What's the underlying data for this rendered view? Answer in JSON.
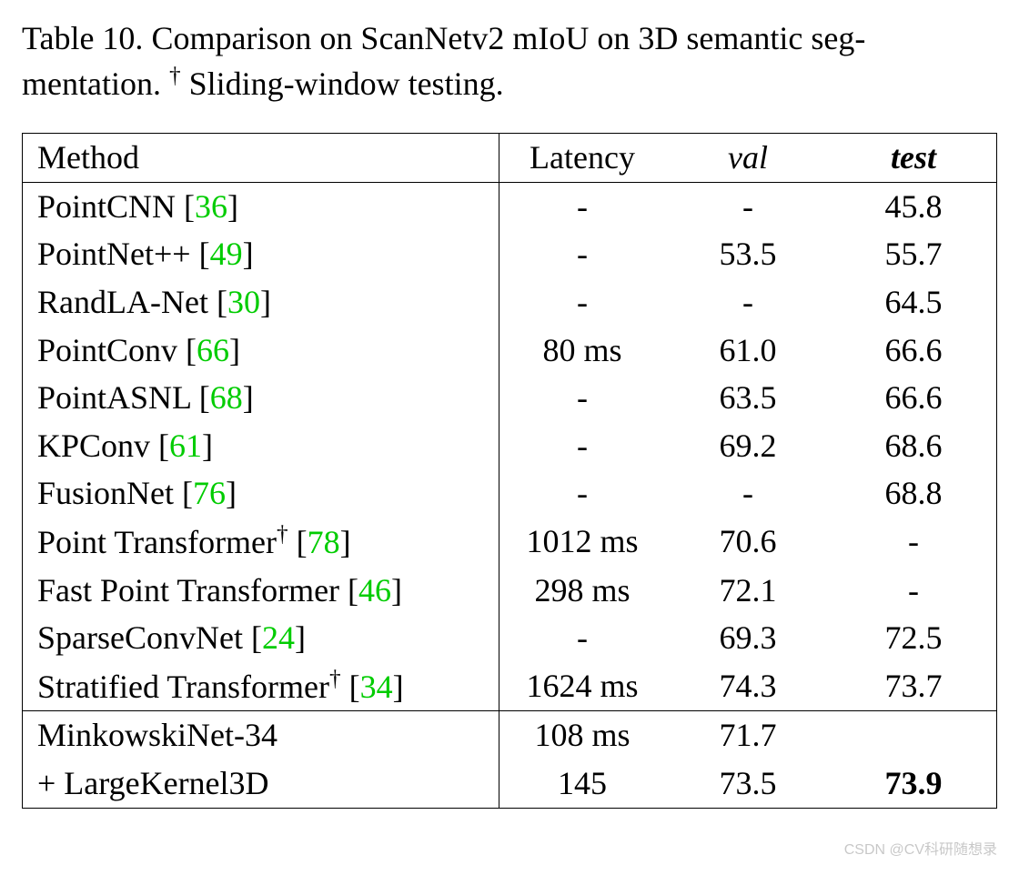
{
  "caption": {
    "prefix": "Table 10.",
    "text1": "Comparison on ScanNetv2 mIoU on 3D semantic seg-",
    "text2": "mentation.",
    "dagger": "†",
    "note": "Sliding-window testing."
  },
  "columns": {
    "method": "Method",
    "latency": "Latency",
    "val": "val",
    "test": "test"
  },
  "styling": {
    "ref_color": "#00cc00",
    "text_color": "#000000",
    "bg_color": "#ffffff",
    "font_family": "Times New Roman",
    "font_size_pt": 27,
    "border_color": "#000000"
  },
  "rows_group1": [
    {
      "method": "PointCNN",
      "ref": "36",
      "dagger": false,
      "latency": "-",
      "val": "-",
      "test": "45.8"
    },
    {
      "method": "PointNet++",
      "ref": "49",
      "dagger": false,
      "latency": "-",
      "val": "53.5",
      "test": "55.7"
    },
    {
      "method": "RandLA-Net",
      "ref": "30",
      "dagger": false,
      "latency": "-",
      "val": "-",
      "test": "64.5"
    },
    {
      "method": "PointConv",
      "ref": "66",
      "dagger": false,
      "latency": "80 ms",
      "val": "61.0",
      "test": "66.6"
    },
    {
      "method": "PointASNL",
      "ref": "68",
      "dagger": false,
      "latency": "-",
      "val": "63.5",
      "test": "66.6"
    },
    {
      "method": "KPConv",
      "ref": "61",
      "dagger": false,
      "latency": "-",
      "val": "69.2",
      "test": "68.6"
    },
    {
      "method": "FusionNet",
      "ref": "76",
      "dagger": false,
      "latency": "-",
      "val": "-",
      "test": "68.8"
    },
    {
      "method": "Point Transformer",
      "ref": "78",
      "dagger": true,
      "latency": "1012 ms",
      "val": "70.6",
      "test": "-"
    },
    {
      "method": "Fast Point Transformer",
      "ref": "46",
      "dagger": false,
      "latency": "298 ms",
      "val": "72.1",
      "test": "-"
    },
    {
      "method": "SparseConvNet",
      "ref": "24",
      "dagger": false,
      "latency": "-",
      "val": "69.3",
      "test": "72.5"
    },
    {
      "method": "Stratified Transformer",
      "ref": "34",
      "dagger": true,
      "latency": "1624 ms",
      "val": "74.3",
      "test": "73.7"
    }
  ],
  "rows_group2": [
    {
      "method": "MinkowskiNet-34",
      "ref": null,
      "dagger": false,
      "latency": "108 ms",
      "val": "71.7",
      "test": "",
      "test_bold": false
    },
    {
      "method": "+ LargeKernel3D",
      "ref": null,
      "dagger": false,
      "latency": "145",
      "val": "73.5",
      "test": "73.9",
      "test_bold": true
    }
  ],
  "watermark": "CSDN @CV科研随想录"
}
